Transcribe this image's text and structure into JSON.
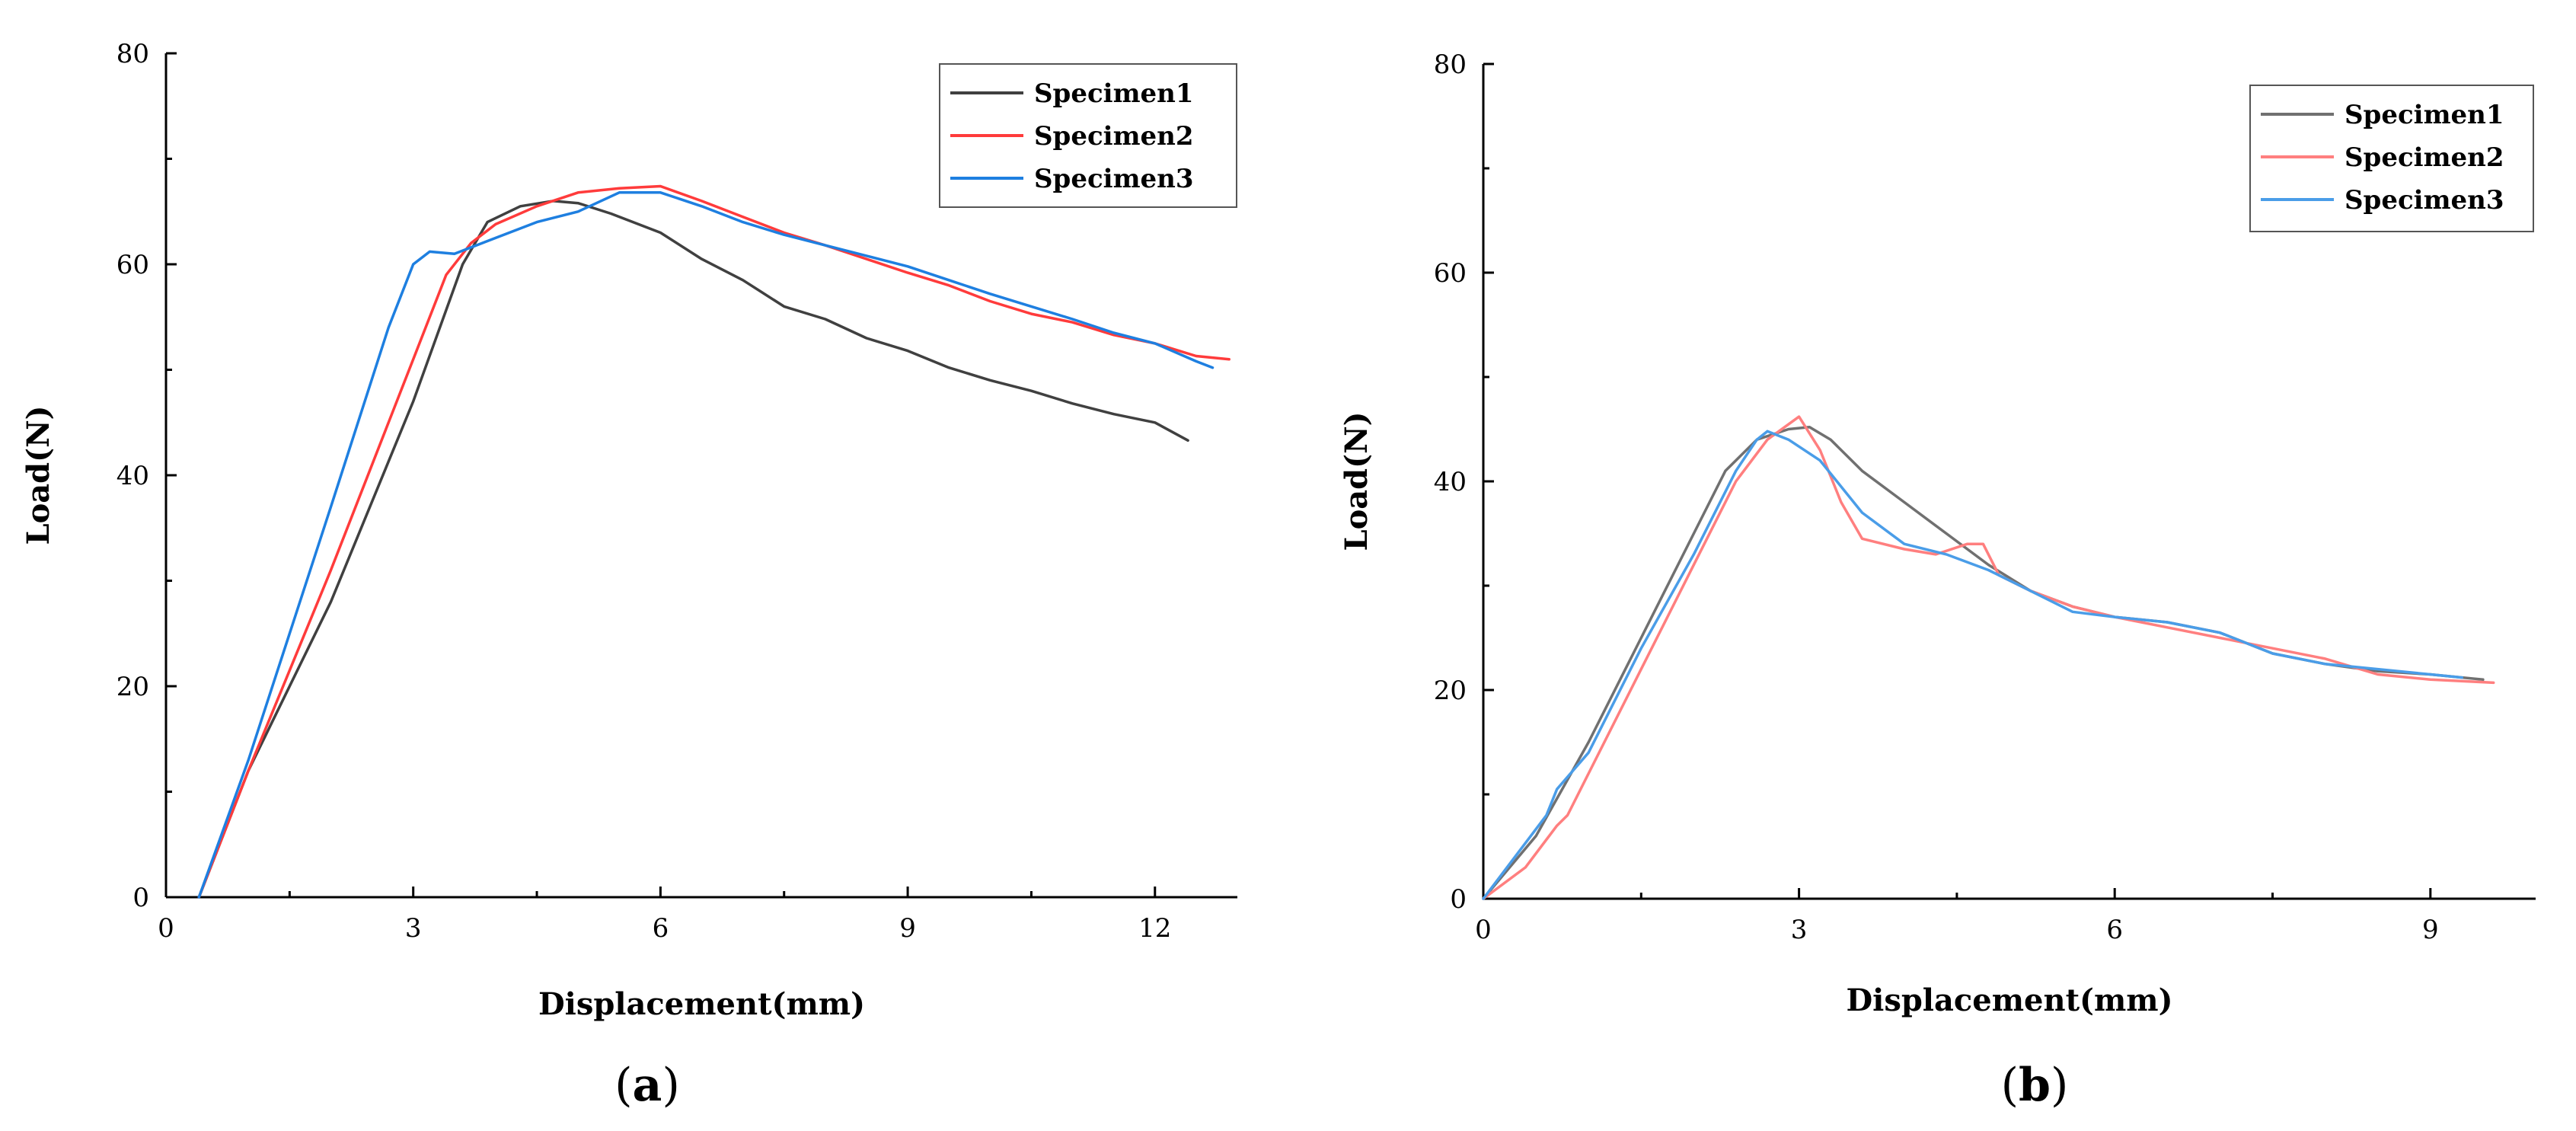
{
  "chart_data": [
    {
      "type": "line",
      "panel_label": "a",
      "xlabel": "Displacement(mm)",
      "ylabel": "Load(N)",
      "xlim": [
        0,
        13
      ],
      "ylim": [
        0,
        80
      ],
      "xticks": [
        0,
        3,
        6,
        9,
        12
      ],
      "yticks": [
        0,
        20,
        40,
        60,
        80
      ],
      "legend_position": "top-right",
      "series": [
        {
          "name": "Specimen1",
          "color": "#404040",
          "points": [
            [
              0.4,
              0
            ],
            [
              1.0,
              12
            ],
            [
              2.0,
              28
            ],
            [
              3.0,
              47
            ],
            [
              3.6,
              60
            ],
            [
              3.9,
              64
            ],
            [
              4.3,
              65.5
            ],
            [
              4.7,
              66
            ],
            [
              5.0,
              65.8
            ],
            [
              5.4,
              64.8
            ],
            [
              6.0,
              63
            ],
            [
              6.5,
              60.5
            ],
            [
              7.0,
              58.5
            ],
            [
              7.5,
              56
            ],
            [
              8.0,
              54.8
            ],
            [
              8.5,
              53
            ],
            [
              9.0,
              51.8
            ],
            [
              9.5,
              50.2
            ],
            [
              10.0,
              49
            ],
            [
              10.5,
              48
            ],
            [
              11.0,
              46.8
            ],
            [
              11.5,
              45.8
            ],
            [
              12.0,
              45
            ],
            [
              12.4,
              43.3
            ]
          ]
        },
        {
          "name": "Specimen2",
          "color": "#ff3b3b",
          "points": [
            [
              0.4,
              0
            ],
            [
              1.0,
              12
            ],
            [
              2.0,
              31
            ],
            [
              3.0,
              51
            ],
            [
              3.4,
              59
            ],
            [
              3.7,
              62
            ],
            [
              4.0,
              63.8
            ],
            [
              4.5,
              65.5
            ],
            [
              5.0,
              66.8
            ],
            [
              5.5,
              67.2
            ],
            [
              6.0,
              67.4
            ],
            [
              6.5,
              66
            ],
            [
              7.0,
              64.5
            ],
            [
              7.5,
              63
            ],
            [
              8.0,
              61.8
            ],
            [
              8.5,
              60.5
            ],
            [
              9.0,
              59.2
            ],
            [
              9.5,
              58
            ],
            [
              10.0,
              56.5
            ],
            [
              10.5,
              55.3
            ],
            [
              11.0,
              54.5
            ],
            [
              11.5,
              53.3
            ],
            [
              12.0,
              52.5
            ],
            [
              12.5,
              51.3
            ],
            [
              12.9,
              51
            ]
          ]
        },
        {
          "name": "Specimen3",
          "color": "#1e7fe0",
          "points": [
            [
              0.4,
              0
            ],
            [
              1.0,
              13
            ],
            [
              2.0,
              37
            ],
            [
              2.7,
              54
            ],
            [
              3.0,
              60
            ],
            [
              3.2,
              61.2
            ],
            [
              3.5,
              61
            ],
            [
              4.0,
              62.5
            ],
            [
              4.5,
              64
            ],
            [
              5.0,
              65
            ],
            [
              5.5,
              66.8
            ],
            [
              6.0,
              66.8
            ],
            [
              6.5,
              65.5
            ],
            [
              7.0,
              64
            ],
            [
              7.5,
              62.8
            ],
            [
              8.0,
              61.8
            ],
            [
              8.5,
              60.8
            ],
            [
              9.0,
              59.8
            ],
            [
              9.5,
              58.5
            ],
            [
              10.0,
              57.2
            ],
            [
              10.5,
              56
            ],
            [
              11.0,
              54.8
            ],
            [
              11.5,
              53.5
            ],
            [
              12.0,
              52.5
            ],
            [
              12.5,
              50.8
            ],
            [
              12.7,
              50.2
            ]
          ]
        }
      ]
    },
    {
      "type": "line",
      "panel_label": "b",
      "xlabel": "Displacement(mm)",
      "ylabel": "Load(N)",
      "xlim": [
        0,
        10
      ],
      "ylim": [
        0,
        80
      ],
      "xticks": [
        0,
        3,
        6,
        9
      ],
      "yticks": [
        0,
        20,
        40,
        60,
        80
      ],
      "legend_position": "top-right",
      "series": [
        {
          "name": "Specimen1",
          "color": "#707070",
          "points": [
            [
              0,
              0
            ],
            [
              0.5,
              6
            ],
            [
              1.0,
              15
            ],
            [
              1.5,
              25
            ],
            [
              2.0,
              35
            ],
            [
              2.3,
              41
            ],
            [
              2.6,
              44
            ],
            [
              2.9,
              45
            ],
            [
              3.1,
              45.2
            ],
            [
              3.3,
              44
            ],
            [
              3.6,
              41
            ],
            [
              4.0,
              38
            ],
            [
              4.4,
              35
            ],
            [
              4.8,
              32
            ],
            [
              5.2,
              29.5
            ],
            [
              5.6,
              28
            ],
            [
              6.0,
              27
            ],
            [
              6.5,
              26.5
            ],
            [
              7.0,
              25.5
            ],
            [
              7.5,
              23.5
            ],
            [
              8.0,
              22.5
            ],
            [
              8.5,
              21.8
            ],
            [
              9.0,
              21.5
            ],
            [
              9.5,
              21
            ]
          ]
        },
        {
          "name": "Specimen2",
          "color": "#ff7f7f",
          "points": [
            [
              0,
              0
            ],
            [
              0.4,
              3
            ],
            [
              0.7,
              7
            ],
            [
              0.8,
              8
            ],
            [
              1.0,
              12
            ],
            [
              1.5,
              22
            ],
            [
              2.0,
              32
            ],
            [
              2.4,
              40
            ],
            [
              2.7,
              44
            ],
            [
              3.0,
              46.2
            ],
            [
              3.2,
              43
            ],
            [
              3.4,
              38
            ],
            [
              3.6,
              34.5
            ],
            [
              4.0,
              33.5
            ],
            [
              4.3,
              33
            ],
            [
              4.6,
              34
            ],
            [
              4.75,
              34
            ],
            [
              4.9,
              31
            ],
            [
              5.2,
              29.5
            ],
            [
              5.6,
              28
            ],
            [
              6.0,
              27
            ],
            [
              6.5,
              26
            ],
            [
              7.0,
              25
            ],
            [
              7.5,
              24
            ],
            [
              8.0,
              23
            ],
            [
              8.5,
              21.5
            ],
            [
              9.0,
              21
            ],
            [
              9.6,
              20.7
            ]
          ]
        },
        {
          "name": "Specimen3",
          "color": "#4a9de8",
          "points": [
            [
              0,
              0
            ],
            [
              0.3,
              4
            ],
            [
              0.6,
              8
            ],
            [
              0.7,
              10.5
            ],
            [
              1.0,
              14
            ],
            [
              1.5,
              24
            ],
            [
              2.0,
              33
            ],
            [
              2.4,
              41
            ],
            [
              2.6,
              44
            ],
            [
              2.7,
              44.8
            ],
            [
              2.9,
              44
            ],
            [
              3.2,
              42
            ],
            [
              3.6,
              37
            ],
            [
              4.0,
              34
            ],
            [
              4.4,
              33
            ],
            [
              4.8,
              31.5
            ],
            [
              5.2,
              29.5
            ],
            [
              5.6,
              27.5
            ],
            [
              6.0,
              27
            ],
            [
              6.5,
              26.5
            ],
            [
              7.0,
              25.5
            ],
            [
              7.5,
              23.5
            ],
            [
              8.0,
              22.5
            ],
            [
              8.5,
              22
            ],
            [
              9.0,
              21.5
            ],
            [
              9.3,
              21.2
            ]
          ]
        }
      ]
    }
  ]
}
